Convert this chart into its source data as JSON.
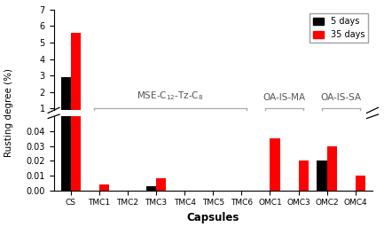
{
  "categories": [
    "CS",
    "TMC1",
    "TMC2",
    "TMC3",
    "TMC4",
    "TMC5",
    "TMC6",
    "OMC1",
    "OMC3",
    "OMC2",
    "OMC4"
  ],
  "values_5days": [
    2.9,
    0.0,
    0.0,
    0.003,
    0.0,
    0.0,
    0.0,
    0.0,
    0.0,
    0.02,
    0.0
  ],
  "values_35days": [
    5.6,
    0.004,
    0.0,
    0.008,
    0.0,
    0.0,
    0.0,
    0.035,
    0.02,
    0.03,
    0.01
  ],
  "color_5days": "#000000",
  "color_35days": "#ff0000",
  "xlabel": "Capsules",
  "ylabel": "Rusting degree (%)",
  "legend_5days": "5 days",
  "legend_35days": "35 days",
  "ylim_lower": [
    0.0,
    0.05
  ],
  "ylim_upper": [
    0.9,
    7.0
  ],
  "yticks_lower": [
    0.0,
    0.01,
    0.02,
    0.03,
    0.04
  ],
  "yticks_upper": [
    1,
    2,
    3,
    4,
    5,
    6,
    7
  ],
  "label_mse": "MSE-C$_{12}$-Tz-C$_{8}$",
  "label_oaIsma": "OA-IS-MA",
  "label_oaIssa": "OA-IS-SA",
  "background_color": "#ffffff",
  "bar_width": 0.35,
  "figsize": [
    4.33,
    2.65
  ],
  "dpi": 100
}
